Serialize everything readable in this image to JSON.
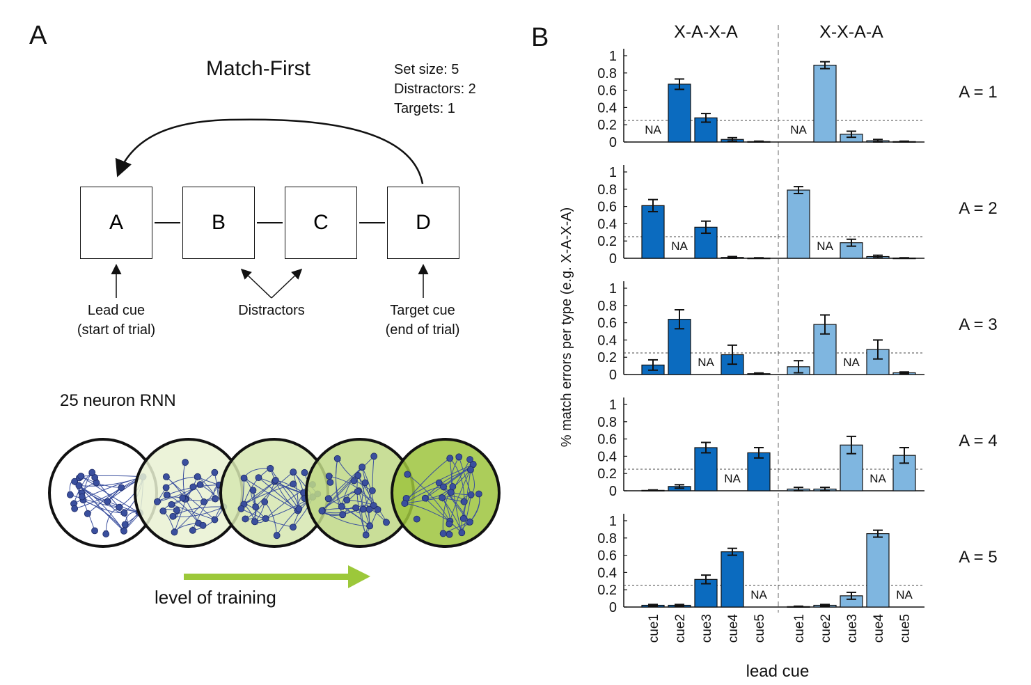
{
  "panel_a": {
    "letter": "A",
    "title": "Match-First",
    "params": [
      "Set size: 5",
      "Distractors: 2",
      "Targets: 1"
    ],
    "boxes": [
      "A",
      "B",
      "C",
      "D"
    ],
    "lead_cue": [
      "Lead cue",
      "(start of trial)"
    ],
    "distractors": "Distractors",
    "target_cue": [
      "Target cue",
      "(end of trial)"
    ],
    "rnn_title": "25 neuron RNN",
    "training_label": "level of training",
    "circle_fills": [
      "#ffffff",
      "#e9f1d2",
      "#d6e6b0",
      "#bfd886",
      "#9ec43d"
    ],
    "node_color": "#3a4f9e",
    "arrow_color": "#9cc83a"
  },
  "chart_data": {
    "type": "bar",
    "panel_letter": "B",
    "ylabel": "% match errors per type (e.g. X-A-X-A)",
    "xlabel": "lead cue",
    "groups": [
      "X-A-X-A",
      "X-X-A-A"
    ],
    "group_colors": [
      "#0b6bbf",
      "#7fb6e0"
    ],
    "categories": [
      "cue1",
      "cue2",
      "cue3",
      "cue4",
      "cue5"
    ],
    "yticks": [
      0,
      0.2,
      0.4,
      0.6,
      0.8,
      1
    ],
    "ytick_labels": [
      "0",
      "0.2",
      "0.4",
      "0.6",
      "0.8",
      "1"
    ],
    "ylim": [
      0,
      1.05
    ],
    "chance_level": 0.25,
    "na_label": "NA",
    "rows": [
      {
        "label": "A = 1",
        "series": [
          {
            "values": [
              null,
              0.67,
              0.28,
              0.03,
              0.005
            ],
            "errors": [
              null,
              0.06,
              0.05,
              0.02,
              0.005
            ]
          },
          {
            "values": [
              null,
              0.89,
              0.09,
              0.015,
              0.005
            ],
            "errors": [
              null,
              0.04,
              0.035,
              0.015,
              0.005
            ]
          }
        ]
      },
      {
        "label": "A = 2",
        "series": [
          {
            "values": [
              0.61,
              null,
              0.36,
              0.01,
              0.003
            ],
            "errors": [
              0.07,
              null,
              0.07,
              0.01,
              0.003
            ]
          },
          {
            "values": [
              0.79,
              null,
              0.18,
              0.02,
              0.003
            ],
            "errors": [
              0.04,
              null,
              0.04,
              0.015,
              0.003
            ]
          }
        ]
      },
      {
        "label": "A = 3",
        "series": [
          {
            "values": [
              0.11,
              0.64,
              null,
              0.23,
              0.01
            ],
            "errors": [
              0.06,
              0.11,
              null,
              0.11,
              0.008
            ]
          },
          {
            "values": [
              0.09,
              0.58,
              null,
              0.29,
              0.02
            ],
            "errors": [
              0.07,
              0.11,
              null,
              0.11,
              0.01
            ]
          }
        ]
      },
      {
        "label": "A = 4",
        "series": [
          {
            "values": [
              0.005,
              0.05,
              0.5,
              null,
              0.44
            ],
            "errors": [
              0.005,
              0.02,
              0.06,
              null,
              0.06
            ]
          },
          {
            "values": [
              0.02,
              0.02,
              0.53,
              null,
              0.41
            ],
            "errors": [
              0.02,
              0.02,
              0.1,
              null,
              0.09
            ]
          }
        ]
      },
      {
        "label": "A = 5",
        "series": [
          {
            "values": [
              0.02,
              0.02,
              0.32,
              0.64,
              null
            ],
            "errors": [
              0.01,
              0.01,
              0.05,
              0.04,
              null
            ]
          },
          {
            "values": [
              0.005,
              0.02,
              0.13,
              0.85,
              null
            ],
            "errors": [
              0.005,
              0.01,
              0.04,
              0.04,
              null
            ]
          }
        ]
      }
    ]
  }
}
